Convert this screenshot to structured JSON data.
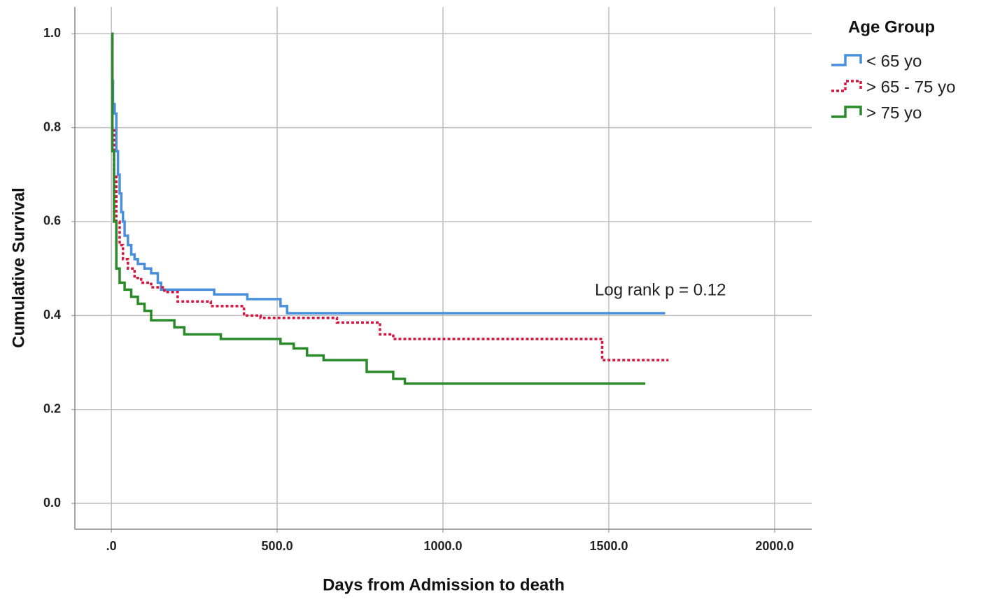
{
  "chart_data": {
    "type": "step",
    "x_label": "Days from Admission to death",
    "y_label": "Cumulative Survival",
    "legend_title": "Age Group",
    "legend": "outside-right",
    "annotation": "Log rank p = 0.12",
    "grid": true,
    "xlim": [
      -110,
      2112
    ],
    "ylim": [
      -0.055,
      1.057
    ],
    "xticks": [
      {
        "value": 0,
        "label": ".0"
      },
      {
        "value": 500,
        "label": "500.0"
      },
      {
        "value": 1000,
        "label": "1000.0"
      },
      {
        "value": 1500,
        "label": "1500.0"
      },
      {
        "value": 2000,
        "label": "2000.0"
      }
    ],
    "yticks": [
      {
        "value": 0,
        "label": "0.0"
      },
      0.2,
      0.4,
      0.6,
      0.8,
      {
        "value": 1,
        "label": "1.0"
      }
    ],
    "series": [
      {
        "name": "< 65 yo",
        "color": "#4a8fdc",
        "line_style": "solid",
        "x": [
          0,
          3,
          5,
          10,
          15,
          20,
          25,
          30,
          35,
          40,
          50,
          60,
          70,
          80,
          100,
          120,
          140,
          150,
          310,
          410,
          510,
          530,
          1670
        ],
        "values": [
          1.0,
          0.9,
          0.85,
          0.83,
          0.75,
          0.7,
          0.66,
          0.62,
          0.6,
          0.57,
          0.55,
          0.53,
          0.52,
          0.51,
          0.5,
          0.49,
          0.47,
          0.455,
          0.445,
          0.435,
          0.42,
          0.405,
          0.405
        ]
      },
      {
        "name": "> 65 - 75 yo",
        "color": "#d4163f",
        "line_style": "dotted",
        "x": [
          0,
          3,
          8,
          15,
          25,
          35,
          50,
          70,
          90,
          120,
          160,
          200,
          300,
          400,
          450,
          680,
          810,
          850,
          1480,
          1680
        ],
        "values": [
          1.0,
          0.8,
          0.7,
          0.6,
          0.55,
          0.52,
          0.5,
          0.48,
          0.47,
          0.46,
          0.45,
          0.43,
          0.42,
          0.4,
          0.395,
          0.385,
          0.36,
          0.35,
          0.305,
          0.305
        ]
      },
      {
        "name": "> 75 yo",
        "color": "#2a8a2a",
        "line_style": "solid",
        "x": [
          0,
          3,
          8,
          15,
          25,
          40,
          60,
          80,
          100,
          120,
          190,
          220,
          330,
          510,
          550,
          590,
          640,
          770,
          850,
          885,
          1610
        ],
        "values": [
          1.0,
          0.75,
          0.6,
          0.5,
          0.47,
          0.455,
          0.44,
          0.425,
          0.41,
          0.39,
          0.375,
          0.36,
          0.35,
          0.34,
          0.33,
          0.315,
          0.305,
          0.28,
          0.265,
          0.255,
          0.255
        ]
      }
    ]
  }
}
